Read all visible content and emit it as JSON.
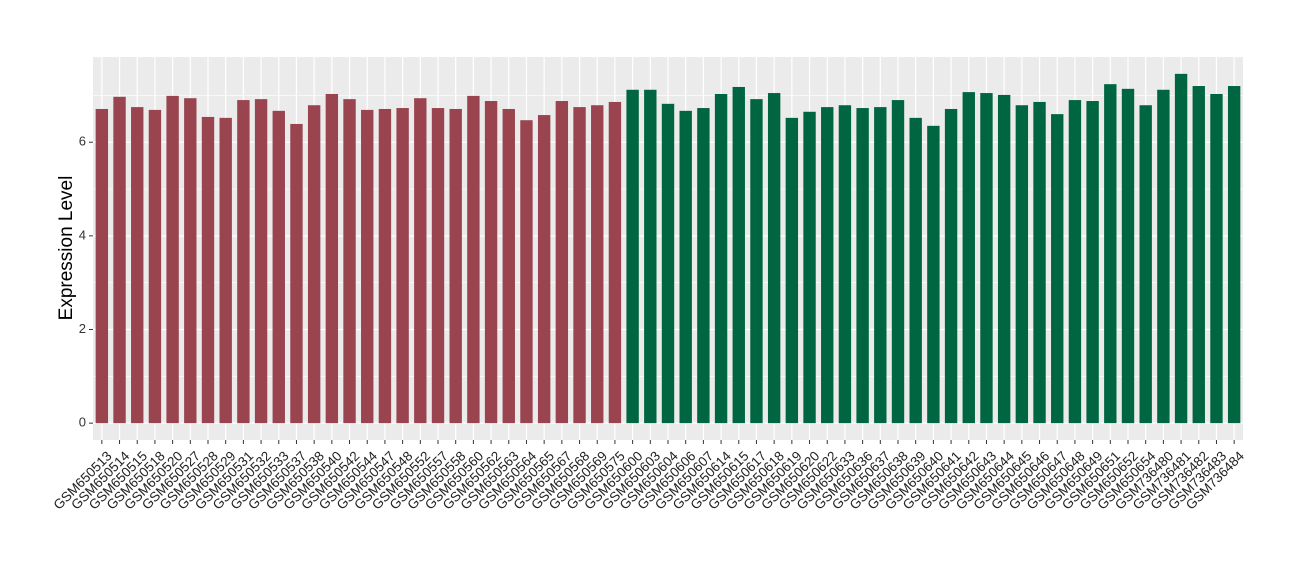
{
  "chart_data": {
    "type": "bar",
    "y_label": "Expression Level",
    "categories": [
      "GSM650513",
      "GSM650514",
      "GSM650515",
      "GSM650518",
      "GSM650520",
      "GSM650527",
      "GSM650528",
      "GSM650529",
      "GSM650531",
      "GSM650532",
      "GSM650533",
      "GSM650537",
      "GSM650538",
      "GSM650540",
      "GSM650542",
      "GSM650544",
      "GSM650547",
      "GSM650548",
      "GSM650552",
      "GSM650557",
      "GSM650558",
      "GSM650560",
      "GSM650562",
      "GSM650563",
      "GSM650564",
      "GSM650565",
      "GSM650567",
      "GSM650568",
      "GSM650569",
      "GSM650575",
      "GSM650600",
      "GSM650603",
      "GSM650604",
      "GSM650606",
      "GSM650607",
      "GSM650614",
      "GSM650615",
      "GSM650617",
      "GSM650618",
      "GSM650619",
      "GSM650620",
      "GSM650622",
      "GSM650633",
      "GSM650636",
      "GSM650637",
      "GSM650638",
      "GSM650639",
      "GSM650640",
      "GSM650641",
      "GSM650642",
      "GSM650643",
      "GSM650644",
      "GSM650645",
      "GSM650646",
      "GSM650647",
      "GSM650648",
      "GSM650649",
      "GSM650651",
      "GSM650652",
      "GSM650654",
      "GSM736480",
      "GSM736481",
      "GSM736482",
      "GSM736483",
      "GSM736484"
    ],
    "values": [
      6.71,
      6.97,
      6.75,
      6.69,
      6.99,
      6.94,
      6.54,
      6.52,
      6.9,
      6.92,
      6.67,
      6.39,
      6.79,
      7.03,
      6.92,
      6.69,
      6.71,
      6.73,
      6.94,
      6.73,
      6.71,
      6.99,
      6.88,
      6.71,
      6.47,
      6.58,
      6.88,
      6.75,
      6.79,
      6.86,
      7.12,
      7.12,
      6.82,
      6.67,
      6.73,
      7.03,
      7.18,
      6.92,
      7.05,
      6.52,
      6.65,
      6.75,
      6.79,
      6.73,
      6.75,
      6.9,
      6.52,
      6.35,
      6.71,
      7.07,
      7.05,
      7.01,
      6.79,
      6.86,
      6.6,
      6.9,
      6.88,
      7.24,
      7.14,
      6.79,
      7.12,
      7.46,
      7.2,
      7.03,
      7.2
    ],
    "colors": [
      "#99444f",
      "#99444f",
      "#99444f",
      "#99444f",
      "#99444f",
      "#99444f",
      "#99444f",
      "#99444f",
      "#99444f",
      "#99444f",
      "#99444f",
      "#99444f",
      "#99444f",
      "#99444f",
      "#99444f",
      "#99444f",
      "#99444f",
      "#99444f",
      "#99444f",
      "#99444f",
      "#99444f",
      "#99444f",
      "#99444f",
      "#99444f",
      "#99444f",
      "#99444f",
      "#99444f",
      "#99444f",
      "#99444f",
      "#99444f",
      "#006641",
      "#006641",
      "#006641",
      "#006641",
      "#006641",
      "#006641",
      "#006641",
      "#006641",
      "#006641",
      "#006641",
      "#006641",
      "#006641",
      "#006641",
      "#006641",
      "#006641",
      "#006641",
      "#006641",
      "#006641",
      "#006641",
      "#006641",
      "#006641",
      "#006641",
      "#006641",
      "#006641",
      "#006641",
      "#006641",
      "#006641",
      "#006641",
      "#006641",
      "#006641",
      "#006641",
      "#006641",
      "#006641",
      "#006641",
      "#006641"
    ],
    "ylim": [
      -0.36,
      7.82
    ],
    "yticks": [
      0,
      2,
      4,
      6
    ],
    "grid": true,
    "minor_grid": true
  }
}
